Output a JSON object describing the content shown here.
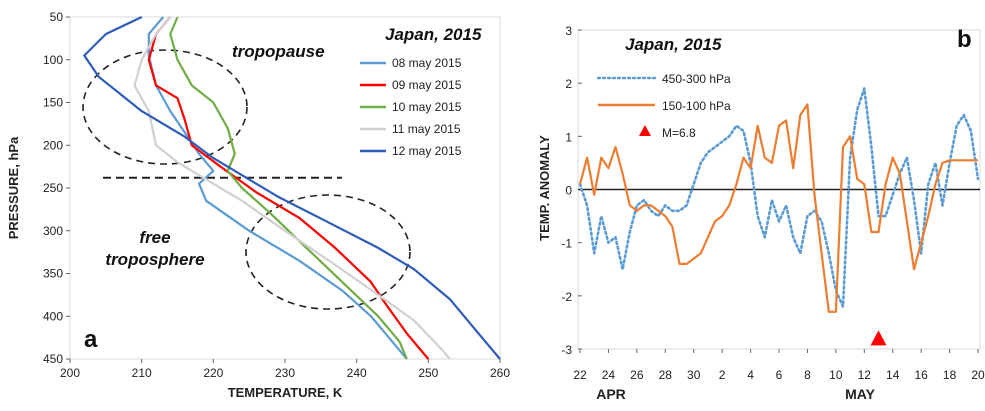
{
  "chart_data": [
    {
      "type": "line",
      "panel_label": "a",
      "legend_title": "Japan, 2015",
      "xlabel": "TEMPERATURE, K",
      "ylabel": "PRESSURE, hPa",
      "xlim": [
        200,
        260
      ],
      "ylim": [
        450,
        50
      ],
      "x_ticks": [
        "200",
        "210",
        "220",
        "230",
        "240",
        "250",
        "260"
      ],
      "y_ticks": [
        "50",
        "100",
        "150",
        "200",
        "250",
        "300",
        "350",
        "400",
        "450"
      ],
      "annotations": [
        "tropopause",
        "free",
        "troposphere"
      ],
      "series": [
        {
          "name": "08 may 2015",
          "color": "#5b9bd5",
          "points": [
            [
              213,
              50
            ],
            [
              211,
              70
            ],
            [
              211,
              95
            ],
            [
              212,
              130
            ],
            [
              214,
              160
            ],
            [
              216,
              185
            ],
            [
              218,
              210
            ],
            [
              220,
              230
            ],
            [
              218,
              245
            ],
            [
              219,
              265
            ],
            [
              225,
              300
            ],
            [
              232,
              335
            ],
            [
              238,
              370
            ],
            [
              242,
              400
            ],
            [
              245,
              430
            ],
            [
              247,
              450
            ]
          ]
        },
        {
          "name": "09 may 2015",
          "color": "#ff0000",
          "points": [
            [
              214,
              50
            ],
            [
              212,
              70
            ],
            [
              211,
              100
            ],
            [
              212,
              130
            ],
            [
              215,
              145
            ],
            [
              216,
              170
            ],
            [
              217,
              200
            ],
            [
              221,
              225
            ],
            [
              226,
              255
            ],
            [
              232,
              285
            ],
            [
              237,
              320
            ],
            [
              242,
              360
            ],
            [
              244,
              385
            ],
            [
              247,
              420
            ],
            [
              250,
              450
            ]
          ]
        },
        {
          "name": "10 may 2015",
          "color": "#70ad47",
          "points": [
            [
              215,
              50
            ],
            [
              214,
              70
            ],
            [
              215,
              100
            ],
            [
              217,
              130
            ],
            [
              220,
              150
            ],
            [
              222,
              180
            ],
            [
              223,
              210
            ],
            [
              222,
              230
            ],
            [
              224,
              250
            ],
            [
              228,
              280
            ],
            [
              233,
              320
            ],
            [
              238,
              360
            ],
            [
              243,
              400
            ],
            [
              246,
              430
            ],
            [
              247,
              450
            ]
          ]
        },
        {
          "name": "11 may 2015",
          "color": "#d0d0d0",
          "points": [
            [
              214,
              50
            ],
            [
              212,
              70
            ],
            [
              210,
              100
            ],
            [
              209,
              130
            ],
            [
              211,
              160
            ],
            [
              212,
              200
            ],
            [
              215,
              220
            ],
            [
              219,
              240
            ],
            [
              224,
              265
            ],
            [
              230,
              300
            ],
            [
              237,
              340
            ],
            [
              243,
              375
            ],
            [
              248,
              405
            ],
            [
              252,
              440
            ],
            [
              253,
              450
            ]
          ]
        },
        {
          "name": "12 may 2015",
          "color": "#2e5cb8",
          "points": [
            [
              210,
              50
            ],
            [
              205,
              70
            ],
            [
              202,
              95
            ],
            [
              204,
              120
            ],
            [
              210,
              160
            ],
            [
              216,
              190
            ],
            [
              220,
              215
            ],
            [
              224,
              235
            ],
            [
              229,
              260
            ],
            [
              236,
              290
            ],
            [
              243,
              320
            ],
            [
              248,
              345
            ],
            [
              253,
              380
            ],
            [
              257,
              420
            ],
            [
              260,
              450
            ]
          ]
        }
      ],
      "reference_line_pressure": 238
    },
    {
      "type": "line",
      "panel_label": "b",
      "legend_title": "Japan, 2015",
      "xlabel": "",
      "ylabel": "TEMP. ANOMALY",
      "ylim": [
        -3,
        3
      ],
      "x_ticks": [
        "22",
        "24",
        "26",
        "28",
        "30",
        "2",
        "4",
        "6",
        "8",
        "10",
        "12",
        "14",
        "16",
        "18",
        "20"
      ],
      "month_labels": [
        "APR",
        "MAY"
      ],
      "y_ticks": [
        "3",
        "2",
        "1",
        "0",
        "-1",
        "-2",
        "-3"
      ],
      "x_range_days": [
        0,
        28
      ],
      "series": [
        {
          "name": "450-300 hPa",
          "color": "#5b9bd5",
          "dash": "dotted",
          "x": [
            0,
            0.5,
            1,
            1.5,
            2,
            2.5,
            3,
            3.5,
            4,
            4.5,
            5,
            5.5,
            6,
            6.5,
            7,
            7.5,
            8,
            8.5,
            9,
            9.5,
            10,
            10.5,
            11,
            11.5,
            12,
            12.5,
            13,
            13.5,
            14,
            14.5,
            15,
            15.5,
            16,
            16.5,
            17,
            17.5,
            18,
            18.5,
            19,
            19.5,
            20,
            20.5,
            21,
            21.5,
            22,
            22.5,
            23,
            23.5,
            24,
            24.5,
            25,
            25.5,
            26,
            26.5,
            27,
            27.5,
            28
          ],
          "y": [
            0.1,
            -0.3,
            -1.2,
            -0.5,
            -1.0,
            -0.9,
            -1.5,
            -0.8,
            -0.3,
            -0.2,
            -0.4,
            -0.5,
            -0.3,
            -0.4,
            -0.4,
            -0.3,
            0.1,
            0.5,
            0.7,
            0.8,
            0.9,
            1.0,
            1.2,
            1.1,
            0.5,
            -0.5,
            -0.9,
            -0.2,
            -0.6,
            -0.3,
            -0.9,
            -1.2,
            -0.5,
            -0.4,
            -0.6,
            -1.2,
            -1.9,
            -2.2,
            0.6,
            1.5,
            1.9,
            0.8,
            -0.5,
            -0.5,
            -0.1,
            0.3,
            0.6,
            -0.2,
            -1.2,
            0.1,
            0.5,
            -0.3,
            0.5,
            1.2,
            1.4,
            1.1,
            0.2
          ]
        },
        {
          "name": "150-100 hPa",
          "color": "#ed7d31",
          "dash": "solid",
          "x": [
            0,
            0.5,
            1,
            1.5,
            2,
            2.5,
            3,
            3.5,
            4,
            4.5,
            5,
            5.5,
            6,
            6.5,
            7,
            7.5,
            8,
            8.5,
            9,
            9.5,
            10,
            10.5,
            11,
            11.5,
            12,
            12.5,
            13,
            13.5,
            14,
            14.5,
            15,
            15.5,
            16,
            16.5,
            17,
            17.5,
            18,
            18.5,
            19,
            19.5,
            20,
            20.5,
            21,
            21.5,
            22,
            22.5,
            23,
            23.5,
            24,
            24.5,
            25,
            25.5,
            26,
            26.5,
            27,
            27.5,
            28
          ],
          "y": [
            0.1,
            0.6,
            -0.1,
            0.6,
            0.4,
            0.8,
            0.3,
            -0.3,
            -0.4,
            -0.3,
            -0.3,
            -0.4,
            -0.5,
            -0.7,
            -1.4,
            -1.4,
            -1.3,
            -1.2,
            -0.9,
            -0.6,
            -0.5,
            -0.3,
            0.1,
            0.6,
            0.4,
            1.2,
            0.6,
            0.5,
            1.2,
            1.3,
            0.4,
            1.4,
            1.6,
            -0.1,
            -1.2,
            -2.3,
            -2.3,
            0.8,
            1.0,
            0.2,
            0.1,
            -0.8,
            -0.8,
            0.1,
            0.6,
            0.3,
            -0.6,
            -1.5,
            -1.0,
            -0.5,
            0.1,
            0.5,
            0.55,
            0.55,
            0.55,
            0.55,
            0.55
          ]
        }
      ],
      "event": {
        "label": "M=6.8",
        "marker": "triangle",
        "color": "#ff0000",
        "x_day": 21,
        "y": -2.8
      }
    }
  ]
}
